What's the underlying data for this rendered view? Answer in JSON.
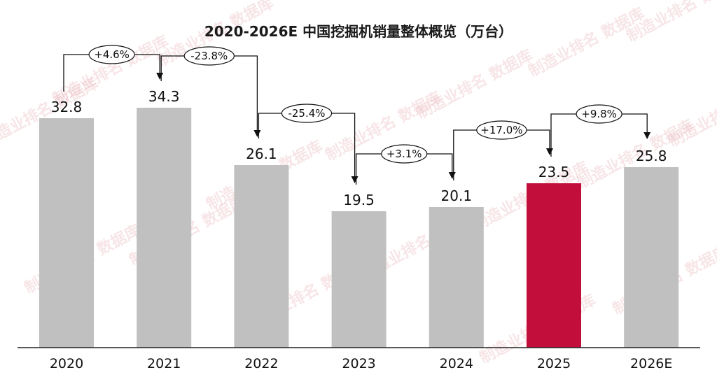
{
  "chart_data": {
    "type": "bar",
    "title": "2020-2026E 中国挖掘机销量整体概览（万台）",
    "categories": [
      "2020",
      "2021",
      "2022",
      "2023",
      "2024",
      "2025",
      "2026E"
    ],
    "values": [
      32.8,
      34.3,
      26.1,
      19.5,
      20.1,
      23.5,
      25.8
    ],
    "highlight_index": 5,
    "growth_labels": [
      "+4.6%",
      "-23.8%",
      "-25.4%",
      "+3.1%",
      "+17.0%",
      "+9.8%"
    ],
    "ylim": [
      0,
      40
    ],
    "grid": false,
    "legend": "none",
    "colors": {
      "bar": "#c0c0c0",
      "highlight": "#c20e3a",
      "axis": "#222222"
    }
  },
  "watermark": "制造业排名 数据库"
}
